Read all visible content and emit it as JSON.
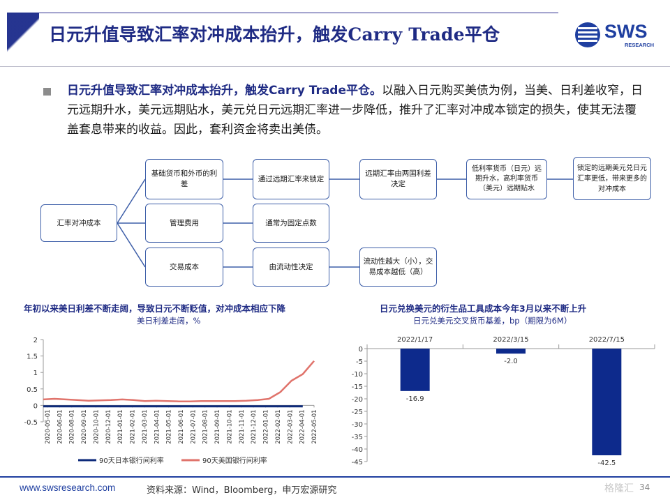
{
  "header": {
    "title": "日元升值导致汇率对冲成本抬升，触发Carry Trade平仓",
    "logo_text": "SWS",
    "logo_sub": "RESEARCH"
  },
  "body": {
    "lead": "日元升值导致汇率对冲成本抬升，触发Carry  Trade平仓。",
    "text": "以融入日元购买美债为例，当美、日利差收窄，日元远期升水，美元远期贴水，美元兑日元远期汇率进一步降低，推升了汇率对冲成本锁定的损失，使其无法覆盖套息带来的收益。因此，套利资金将卖出美债。"
  },
  "diagram": {
    "root": "汇率对冲成本",
    "branch1": "基础货币和外币的利差",
    "branch2": "管理费用",
    "branch3": "交易成本",
    "b1_step1": "通过远期汇率来锁定",
    "b1_step2": "远期汇率由两国利差决定",
    "b1_step3": "低利率货币（日元）远期升水，高利率货币（美元）远期贴水",
    "b1_step4": "锁定的远期美元兑日元汇率更低，带来更多的对冲成本",
    "b2_step1": "通常为固定点数",
    "b3_step1": "由流动性决定",
    "b3_step2": "流动性越大（小），交易成本越低（高）"
  },
  "charts": {
    "left": {
      "title": "年初以来美日利差不断走阔，导致日元不断贬值，对冲成本相应下降",
      "subtitle": "美日利差走阔，%"
    },
    "right": {
      "title": "日元兑换美元的衍生品工具成本今年3月以来不断上升",
      "subtitle": "日元兑美元交叉货币基差，bp（期限为6M）"
    }
  },
  "chart_data": [
    {
      "type": "line",
      "title": "年初以来美日利差不断走阔，导致日元不断贬值，对冲成本相应下降",
      "subtitle": "美日利差走阔，%",
      "x": [
        "2020-05-01",
        "2020-06-01",
        "2020-07-01",
        "2020-08-01",
        "2020-09-01",
        "2020-10-01",
        "2020-11-01",
        "2020-12-01",
        "2021-01-01",
        "2021-02-01",
        "2021-03-01",
        "2021-04-01",
        "2021-05-01",
        "2021-06-01",
        "2021-07-01",
        "2021-08-01",
        "2021-09-01",
        "2021-10-01",
        "2021-11-01",
        "2021-12-01",
        "2022-01-01",
        "2022-02-01",
        "2022-03-01",
        "2022-04-01",
        "2022-05-01"
      ],
      "x_tick_labels": [
        "2020-05-01",
        "2020-06-01",
        "2020-08-01",
        "2020-09-01",
        "2020-10-01",
        "2020-12-01",
        "2021-01-01",
        "2021-02-01",
        "2021-03-01",
        "2021-04-01",
        "2021-05-01",
        "2021-06-01",
        "2021-07-01",
        "2021-08-01",
        "2021-09-01",
        "2021-10-01",
        "2021-11-01",
        "2021-12-01",
        "2022-01-01",
        "2022-02-01",
        "2022-03-01",
        "2022-04-01",
        "2022-05-01"
      ],
      "series": [
        {
          "name": "90天日本银行间利率",
          "color": "#0d2a7a",
          "values": [
            -0.03,
            -0.03,
            -0.03,
            -0.03,
            -0.03,
            -0.03,
            -0.03,
            -0.03,
            -0.03,
            -0.03,
            -0.03,
            -0.03,
            -0.03,
            -0.03,
            -0.03,
            -0.03,
            -0.03,
            -0.03,
            -0.03,
            -0.03,
            -0.03,
            -0.03,
            -0.03,
            -0.03,
            null
          ]
        },
        {
          "name": "90天美国银行间利率",
          "color": "#e0736b",
          "values": [
            0.18,
            0.2,
            0.18,
            0.16,
            0.14,
            0.15,
            0.16,
            0.18,
            0.16,
            0.13,
            0.14,
            0.13,
            0.12,
            0.12,
            0.13,
            0.13,
            0.13,
            0.13,
            0.14,
            0.16,
            0.2,
            0.4,
            0.75,
            0.95,
            1.35
          ]
        }
      ],
      "ylim": [
        -0.5,
        2
      ],
      "y_ticks": [
        -0.5,
        0,
        0.5,
        1,
        1.5,
        2
      ],
      "legend": "bottom",
      "grid": false
    },
    {
      "type": "bar",
      "title": "日元兑换美元的衍生品工具成本今年3月以来不断上升",
      "subtitle": "日元兑美元交叉货币基差，bp（期限为6M）",
      "categories": [
        "2022/1/17",
        "2022/3/15",
        "2022/7/15"
      ],
      "values": [
        -16.9,
        -2.0,
        -42.5
      ],
      "value_labels": [
        "-16.9",
        "-2.0",
        "-42.5"
      ],
      "color": "#0d2a8c",
      "ylim": [
        -45,
        0
      ],
      "y_ticks": [
        0,
        -5,
        -10,
        -15,
        -20,
        -25,
        -30,
        -35,
        -40,
        -45
      ],
      "x_axis_position": "top",
      "grid": false
    }
  ],
  "footer": {
    "url": "www.swsresearch.com",
    "source": "资料来源：Wind，Bloomberg，申万宏源研究",
    "page": "34",
    "watermark": "格隆汇"
  }
}
